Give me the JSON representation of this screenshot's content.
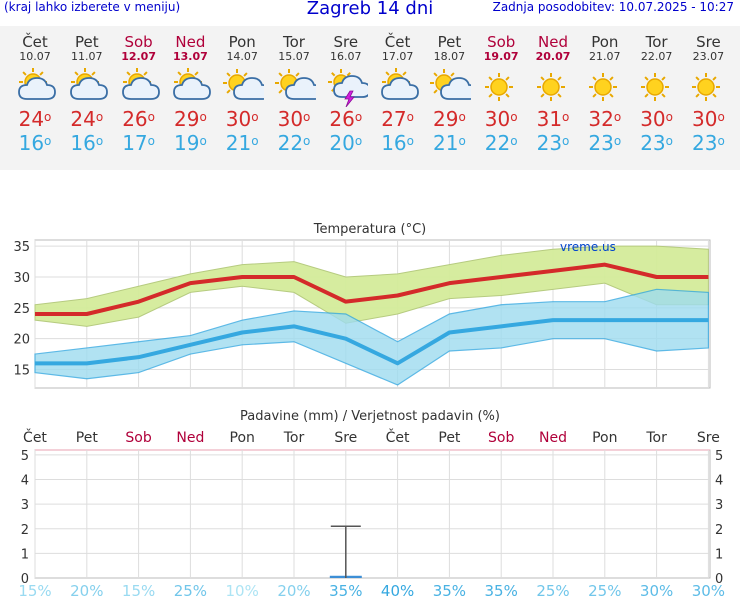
{
  "header": {
    "left": "(kraj lahko izberete v meniju)",
    "title": "Zagreb 14 dni",
    "right": "Zadnja posodobitev: 10.07.2025 - 10:27"
  },
  "days": [
    {
      "name": "Čet",
      "date": "10.07",
      "weekend": false,
      "icon": "partly-cloudy-icon",
      "tmax": "24",
      "tmin": "16"
    },
    {
      "name": "Pet",
      "date": "11.07",
      "weekend": false,
      "icon": "partly-cloudy-icon",
      "tmax": "24",
      "tmin": "16"
    },
    {
      "name": "Sob",
      "date": "12.07",
      "weekend": true,
      "icon": "partly-cloudy-icon",
      "tmax": "26",
      "tmin": "17"
    },
    {
      "name": "Ned",
      "date": "13.07",
      "weekend": true,
      "icon": "partly-cloudy-icon",
      "tmax": "29",
      "tmin": "19"
    },
    {
      "name": "Pon",
      "date": "14.07",
      "weekend": false,
      "icon": "mostly-sunny-icon",
      "tmax": "30",
      "tmin": "21"
    },
    {
      "name": "Tor",
      "date": "15.07",
      "weekend": false,
      "icon": "mostly-sunny-icon",
      "tmax": "30",
      "tmin": "22"
    },
    {
      "name": "Sre",
      "date": "16.07",
      "weekend": false,
      "icon": "thunderstorm-sun-icon",
      "tmax": "26",
      "tmin": "20"
    },
    {
      "name": "Čet",
      "date": "17.07",
      "weekend": false,
      "icon": "partly-cloudy-icon",
      "tmax": "27",
      "tmin": "16"
    },
    {
      "name": "Pet",
      "date": "18.07",
      "weekend": false,
      "icon": "mostly-sunny-icon",
      "tmax": "29",
      "tmin": "21"
    },
    {
      "name": "Sob",
      "date": "19.07",
      "weekend": true,
      "icon": "sunny-icon",
      "tmax": "30",
      "tmin": "22"
    },
    {
      "name": "Ned",
      "date": "20.07",
      "weekend": true,
      "icon": "sunny-icon",
      "tmax": "31",
      "tmin": "23"
    },
    {
      "name": "Pon",
      "date": "21.07",
      "weekend": false,
      "icon": "sunny-icon",
      "tmax": "32",
      "tmin": "23"
    },
    {
      "name": "Tor",
      "date": "22.07",
      "weekend": false,
      "icon": "sunny-icon",
      "tmax": "30",
      "tmin": "23"
    },
    {
      "name": "Sre",
      "date": "23.07",
      "weekend": false,
      "icon": "sunny-icon",
      "tmax": "30",
      "tmin": "23"
    }
  ],
  "colors": {
    "weekend": "#b0003a",
    "weekday": "#333333",
    "tmax": "#d42a2a",
    "tmin": "#35a8e0",
    "max_band": "#d4ec9a",
    "min_band": "#9edcf0",
    "overlap": "#8ed29e"
  },
  "chart_data": [
    {
      "type": "line",
      "title": "Temperatura (°C)",
      "watermark": "vreme.us",
      "categories": [
        "Čet",
        "Pet",
        "Sob",
        "Ned",
        "Pon",
        "Tor",
        "Sre",
        "Čet",
        "Pet",
        "Sob",
        "Ned",
        "Pon",
        "Tor",
        "Sre"
      ],
      "ylim": [
        12,
        36
      ],
      "yticks": [
        15,
        20,
        25,
        30,
        35
      ],
      "grid": true,
      "series": [
        {
          "values": [
            24,
            24,
            26,
            29,
            30,
            30,
            26,
            27,
            29,
            30,
            31,
            32,
            30,
            30
          ]
        },
        {
          "values": [
            16,
            16,
            17,
            19,
            21,
            22,
            20,
            16,
            21,
            22,
            23,
            23,
            23,
            23
          ]
        }
      ],
      "bands": [
        {
          "upper": [
            25.5,
            26.5,
            28.5,
            30.5,
            32,
            32.5,
            30,
            30.5,
            32,
            33.5,
            34.5,
            35,
            35,
            34.5
          ],
          "lower": [
            23,
            22,
            23.5,
            27.5,
            28.5,
            27.5,
            22.5,
            24,
            26.5,
            27,
            28,
            29,
            25.5,
            25.5
          ]
        },
        {
          "upper": [
            17.5,
            18.5,
            19.5,
            20.5,
            23,
            24.5,
            24,
            19.5,
            24,
            25.5,
            26,
            26,
            28,
            27.5
          ],
          "lower": [
            14.5,
            13.5,
            14.5,
            17.5,
            19,
            19.5,
            16,
            12.5,
            18,
            18.5,
            20,
            20,
            18,
            18.5
          ]
        }
      ]
    },
    {
      "type": "bar",
      "title": "Padavine (mm) / Verjetnost padavin (%)",
      "categories": [
        "Čet",
        "Pet",
        "Sob",
        "Ned",
        "Pon",
        "Tor",
        "Sre",
        "Čet",
        "Pet",
        "Sob",
        "Ned",
        "Pon",
        "Tor",
        "Sre"
      ],
      "ylim": [
        0,
        5.2
      ],
      "yticks": [
        0,
        1,
        2,
        3,
        4,
        5
      ],
      "values": [
        0,
        0,
        0,
        0,
        0,
        0,
        0.05,
        0,
        0,
        0,
        0,
        0,
        0,
        0
      ],
      "error_bar": {
        "index": 6,
        "low": 0,
        "high": 2.1
      },
      "probability": [
        "15%",
        "20%",
        "15%",
        "25%",
        "10%",
        "20%",
        "35%",
        "40%",
        "35%",
        "35%",
        "25%",
        "25%",
        "30%",
        "30%"
      ],
      "probability_values": [
        15,
        20,
        15,
        25,
        10,
        20,
        35,
        40,
        35,
        35,
        25,
        25,
        30,
        30
      ]
    }
  ]
}
